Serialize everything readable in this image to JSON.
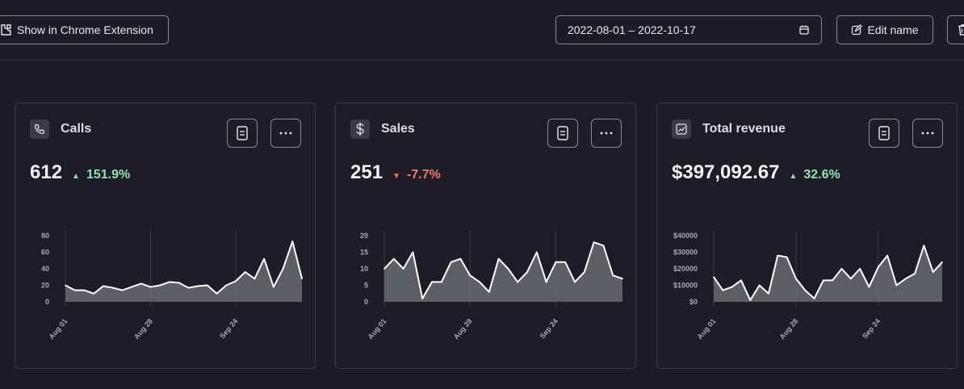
{
  "toolbar": {
    "chrome_label": "Show in Chrome Extension",
    "date_range": "2022-08-01 – 2022-10-17",
    "edit_label": "Edit name"
  },
  "colors": {
    "background": "#1d1c26",
    "positive": "#8fe3b0",
    "negative": "#f07a6a"
  },
  "cards": [
    {
      "title": "Calls",
      "icon": "phone-icon",
      "value": "612",
      "delta": "151.9%",
      "trend": "up",
      "chart_data": {
        "type": "area",
        "x_tick_labels": [
          "Aug 01",
          "Aug 28",
          "Sep 24"
        ],
        "y_tick_labels": [
          "0",
          "20",
          "40",
          "60",
          "80"
        ],
        "ylim": [
          0,
          80
        ],
        "values": [
          20,
          14,
          14,
          10,
          19,
          17,
          14,
          18,
          22,
          18,
          20,
          24,
          23,
          17,
          19,
          20,
          10,
          20,
          25,
          36,
          28,
          52,
          18,
          40,
          73,
          28
        ]
      }
    },
    {
      "title": "Sales",
      "icon": "dollar-icon",
      "value": "251",
      "delta": "-7.7%",
      "trend": "down",
      "chart_data": {
        "type": "area",
        "x_tick_labels": [
          "Aug 01",
          "Aug 28",
          "Sep 24"
        ],
        "y_tick_labels": [
          "0",
          "5",
          "10",
          "15",
          "20"
        ],
        "ylim": [
          0,
          20
        ],
        "values": [
          10,
          13,
          10,
          15,
          1,
          6,
          6,
          12,
          13,
          8,
          6,
          3,
          13,
          10,
          6,
          9,
          15,
          6,
          12,
          12,
          6,
          9,
          18,
          17,
          8,
          7
        ]
      }
    },
    {
      "title": "Total revenue",
      "icon": "chart-icon",
      "value": "$397,092.67",
      "delta": "32.6%",
      "trend": "up",
      "chart_data": {
        "type": "area",
        "x_tick_labels": [
          "Aug 01",
          "Aug 28",
          "Sep 24"
        ],
        "y_tick_labels": [
          "$0",
          "$10000",
          "$20000",
          "$30000",
          "$40000"
        ],
        "ylim": [
          0,
          40000
        ],
        "values": [
          15000,
          7000,
          9000,
          13000,
          1000,
          10000,
          5000,
          28000,
          27000,
          14000,
          7000,
          2000,
          13000,
          13000,
          20000,
          14000,
          20000,
          9000,
          21000,
          28000,
          10000,
          14000,
          17000,
          34000,
          18000,
          24000
        ]
      }
    }
  ]
}
